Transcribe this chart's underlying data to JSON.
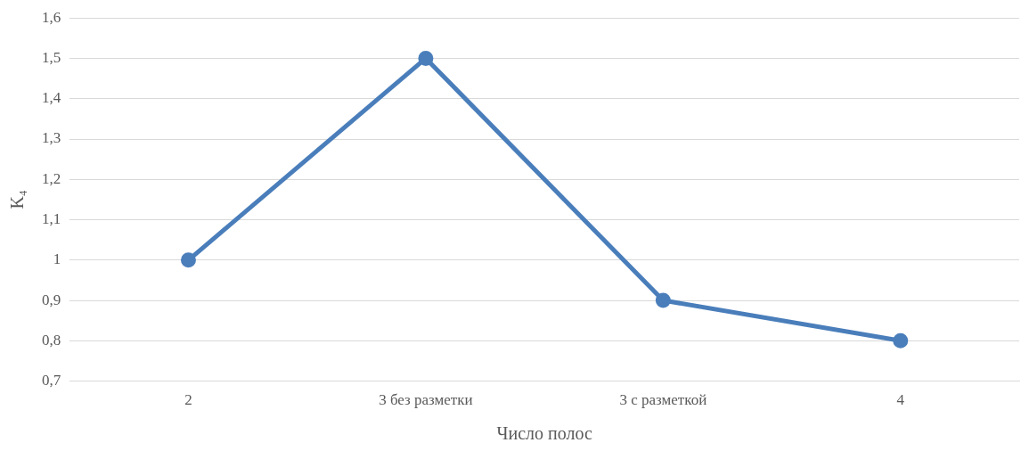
{
  "chart_data": {
    "type": "line",
    "xlabel": "Число полос",
    "ylabel": "K₄",
    "categories": [
      "2",
      "3 без разметки",
      "3 с разметкой",
      "4"
    ],
    "series": [
      {
        "color": "#4a7ebb",
        "values": [
          1,
          1.5,
          0.9,
          0.8
        ]
      }
    ],
    "ylim": [
      0.7,
      1.6
    ],
    "yticks": [
      {
        "value": 0.7,
        "label": "0,7"
      },
      {
        "value": 0.8,
        "label": "0,8"
      },
      {
        "value": 0.9,
        "label": "0,9"
      },
      1,
      {
        "value": 1.1,
        "label": "1,1"
      },
      {
        "value": 1.2,
        "label": "1,2"
      },
      {
        "value": 1.3,
        "label": "1,3"
      },
      {
        "value": 1.4,
        "label": "1,4"
      },
      {
        "value": 1.5,
        "label": "1,5"
      },
      {
        "value": 1.6,
        "label": "1,6"
      }
    ],
    "grid": "y",
    "legend": false,
    "marker": "circle",
    "line_style": "solid"
  }
}
